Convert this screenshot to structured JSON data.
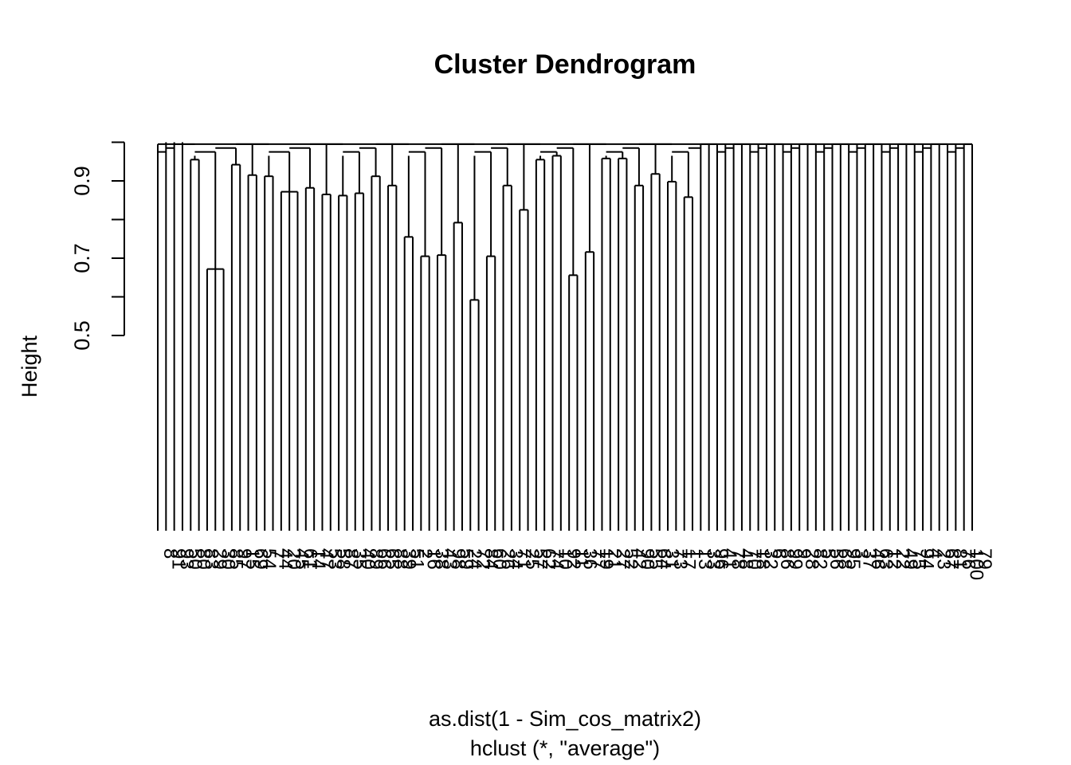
{
  "chart_data": {
    "type": "dendrogram",
    "title": "Cluster Dendrogram",
    "ylabel": "Height",
    "xlabel": "as.dist(1 - Sim_cos_matrix2)",
    "sub": "hclust (*, \"average\")",
    "yticks": [
      0.5,
      0.7,
      0.9
    ],
    "yaxis_range": [
      0.4,
      1.0
    ],
    "leaf_count": 100,
    "leaf_labels": [
      "8",
      "91",
      "93",
      "50",
      "80",
      "83",
      "29",
      "30",
      "85",
      "97",
      "15",
      "69",
      "54",
      "7",
      "44",
      "20",
      "45",
      "61",
      "14",
      "47",
      "53",
      "58",
      "87",
      "35",
      "40",
      "89",
      "66",
      "65",
      "88",
      "39",
      "51",
      "2",
      "16",
      "38",
      "43",
      "98",
      "59",
      "24",
      "72",
      "84",
      "60",
      "26",
      "34",
      "71",
      "25",
      "57",
      "62",
      "74",
      "10",
      "92",
      "11",
      "36",
      "77",
      "19",
      "21",
      "27",
      "52",
      "42",
      "90",
      "55",
      "64",
      "31",
      "73",
      "17",
      "1",
      "13",
      "33",
      "96",
      "41",
      "78",
      "48",
      "70",
      "18",
      "32",
      "6",
      "86",
      "99",
      "9",
      "28",
      "82",
      "5",
      "56",
      "68",
      "95",
      "3",
      "37",
      "46",
      "63",
      "12",
      "22",
      "49",
      "75",
      "94",
      "4",
      "23",
      "67",
      "81",
      "76",
      "100",
      "79"
    ],
    "merges": [
      {
        "ids": [
          1
        ],
        "height": 1.0
      },
      {
        "ids": [
          2
        ],
        "height": 1.0
      },
      {
        "ids": [
          3
        ],
        "height": 1.0
      },
      {
        "ids": [
          4,
          5
        ],
        "height": 0.955
      },
      {
        "ids": [
          6,
          7,
          8
        ],
        "height": 0.672
      },
      {
        "ids": [
          9,
          10
        ],
        "height": 0.942
      },
      {
        "ids": [
          11,
          12
        ],
        "height": 0.915
      },
      {
        "ids": [
          13,
          14
        ],
        "height": 0.912
      },
      {
        "ids": [
          15,
          16,
          17
        ],
        "height": 0.872
      },
      {
        "ids": [
          18,
          19
        ],
        "height": 0.882
      },
      {
        "ids": [
          20,
          21
        ],
        "height": 0.865
      },
      {
        "ids": [
          22,
          23
        ],
        "height": 0.862
      },
      {
        "ids": [
          24,
          25
        ],
        "height": 0.868
      },
      {
        "ids": [
          26,
          27
        ],
        "height": 0.912
      },
      {
        "ids": [
          28,
          29
        ],
        "height": 0.888
      },
      {
        "ids": [
          30,
          31
        ],
        "height": 0.755
      },
      {
        "ids": [
          32,
          33
        ],
        "height": 0.705
      },
      {
        "ids": [
          34,
          35
        ],
        "height": 0.708
      },
      {
        "ids": [
          36,
          37
        ],
        "height": 0.792
      },
      {
        "ids": [
          38,
          39
        ],
        "height": 0.592
      },
      {
        "ids": [
          40,
          41
        ],
        "height": 0.705
      },
      {
        "ids": [
          42,
          43
        ],
        "height": 0.888
      },
      {
        "ids": [
          44,
          45
        ],
        "height": 0.825
      },
      {
        "ids": [
          46,
          47
        ],
        "height": 0.955
      },
      {
        "ids": [
          48,
          49
        ],
        "height": 0.965
      },
      {
        "ids": [
          50,
          51
        ],
        "height": 0.656
      },
      {
        "ids": [
          52,
          53
        ],
        "height": 0.716
      },
      {
        "ids": [
          54,
          55
        ],
        "height": 0.958
      },
      {
        "ids": [
          56,
          57
        ],
        "height": 0.958
      },
      {
        "ids": [
          58,
          59
        ],
        "height": 0.888
      },
      {
        "ids": [
          60,
          61
        ],
        "height": 0.918
      },
      {
        "ids": [
          62,
          63
        ],
        "height": 0.898
      },
      {
        "ids": [
          64,
          65
        ],
        "height": 0.858
      }
    ]
  }
}
